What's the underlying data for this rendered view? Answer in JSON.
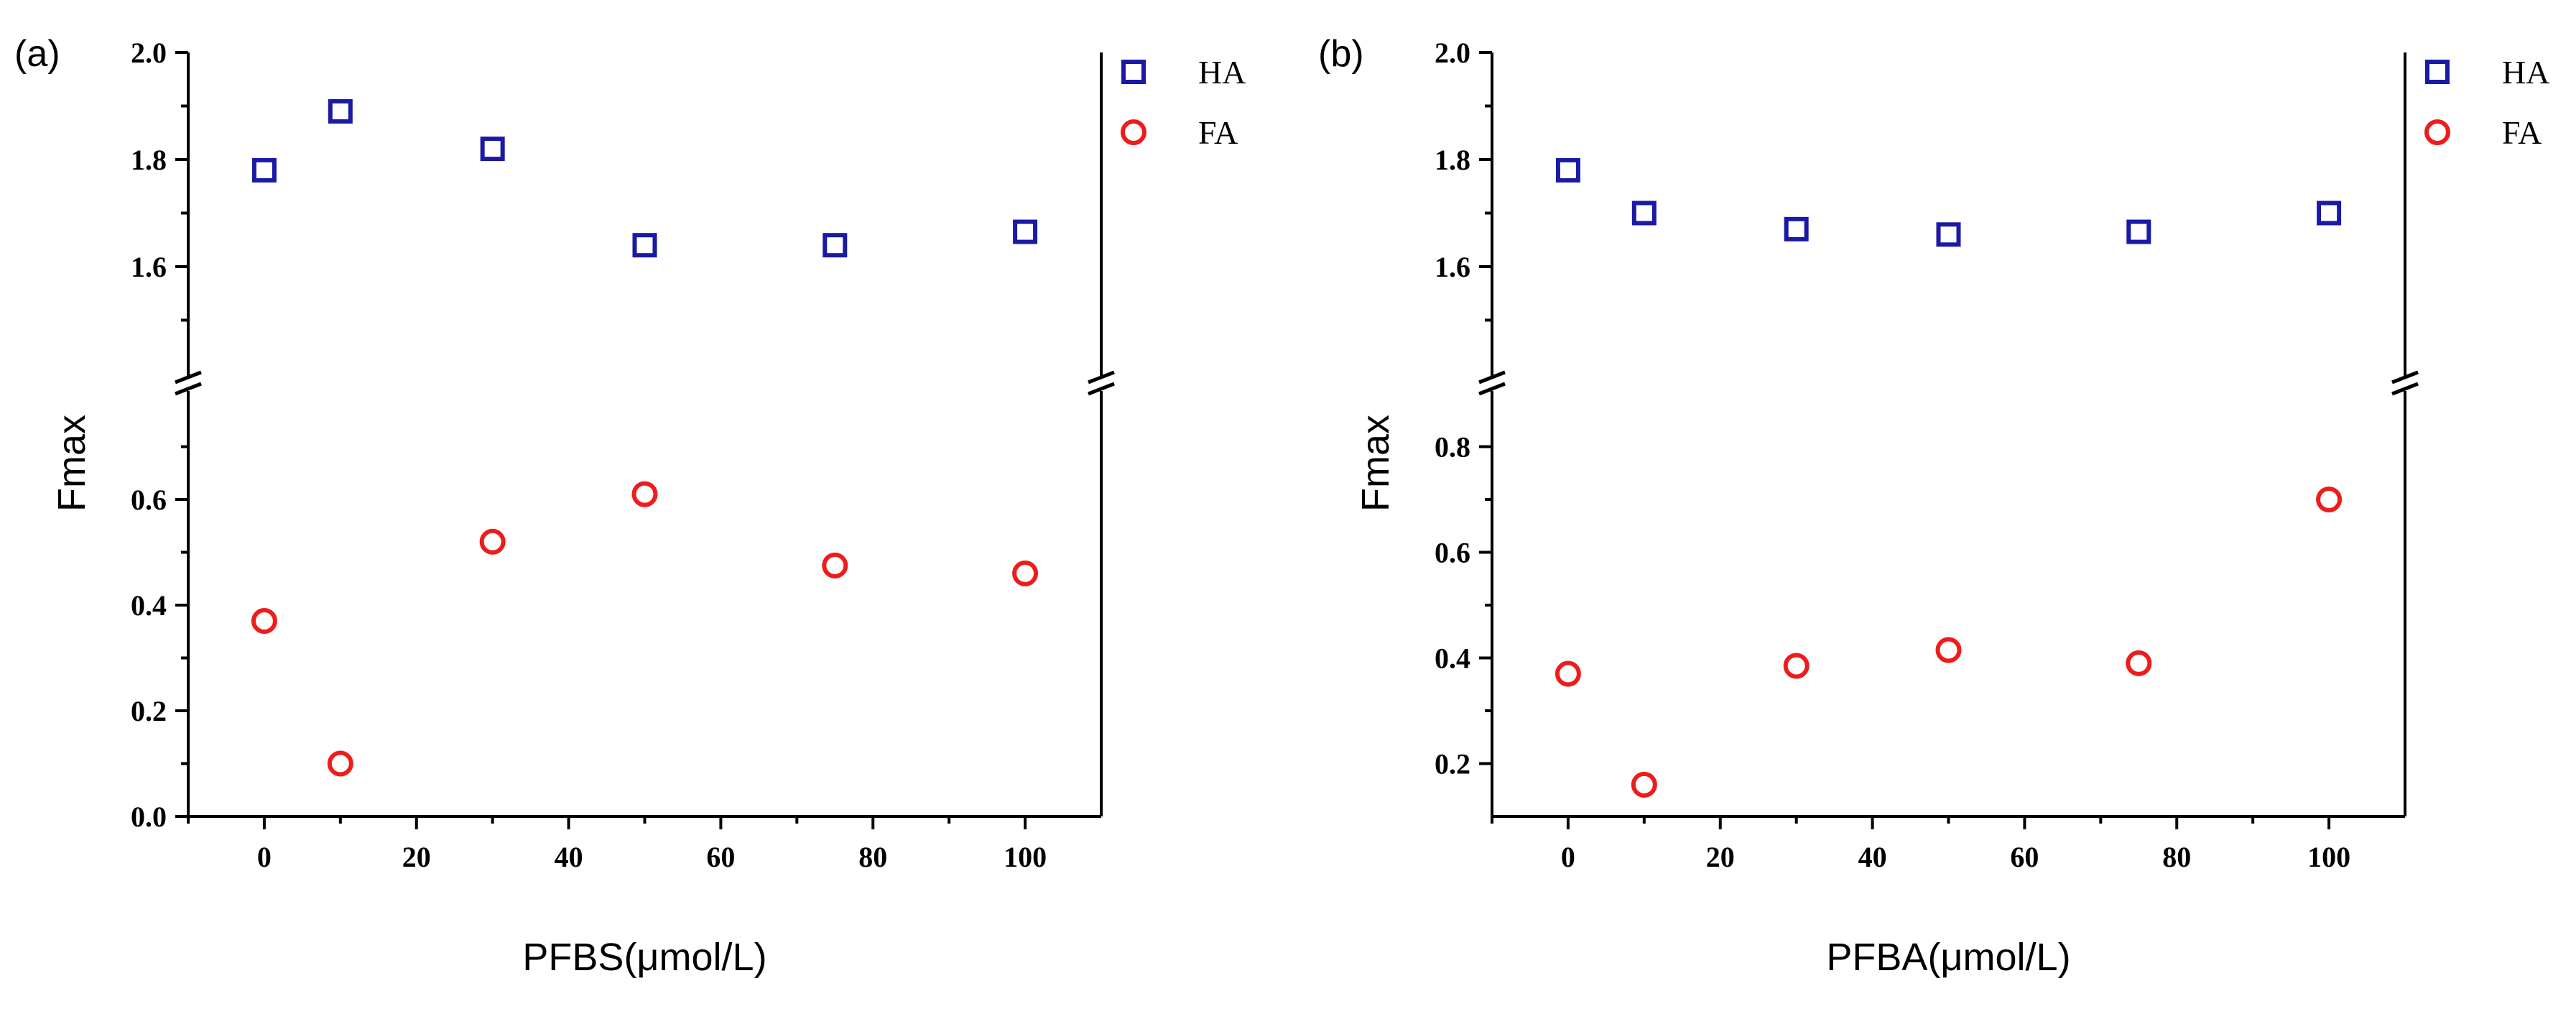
{
  "chart_data": [
    {
      "panel_label": "(a)",
      "type": "scatter",
      "xlabel": "PFBS(μmol/L)",
      "ylabel": "Fmax",
      "xlim": [
        -10,
        110
      ],
      "xticks": [
        0,
        20,
        40,
        60,
        80,
        100
      ],
      "y_broken_axis": true,
      "upper_ylim": [
        1.4,
        2.0
      ],
      "upper_yticks": [
        1.6,
        1.8,
        2.0
      ],
      "lower_ylim": [
        0.0,
        0.8
      ],
      "lower_yticks": [
        0.0,
        0.2,
        0.4,
        0.6
      ],
      "series": [
        {
          "name": "HA",
          "marker": "square",
          "color": "#1a1aa6",
          "x": [
            0,
            10,
            30,
            50,
            75,
            100
          ],
          "y": [
            1.78,
            1.89,
            1.82,
            1.64,
            1.64,
            1.665
          ]
        },
        {
          "name": "FA",
          "marker": "circle",
          "color": "#ee1c1c",
          "x": [
            0,
            10,
            30,
            50,
            75,
            100
          ],
          "y": [
            0.37,
            0.1,
            0.52,
            0.61,
            0.475,
            0.46
          ]
        }
      ],
      "legend_position": "outside-top-right"
    },
    {
      "panel_label": "(b)",
      "type": "scatter",
      "xlabel": "PFBA(μmol/L)",
      "ylabel": "Fmax",
      "xlim": [
        -10,
        110
      ],
      "xticks": [
        0,
        20,
        40,
        60,
        80,
        100
      ],
      "y_broken_axis": true,
      "upper_ylim": [
        1.4,
        2.0
      ],
      "upper_yticks": [
        1.6,
        1.8,
        2.0
      ],
      "lower_ylim": [
        0.1,
        0.9
      ],
      "lower_yticks": [
        0.2,
        0.4,
        0.6,
        0.8
      ],
      "series": [
        {
          "name": "HA",
          "marker": "square",
          "color": "#1a1aa6",
          "x": [
            0,
            10,
            30,
            50,
            75,
            100
          ],
          "y": [
            1.78,
            1.7,
            1.67,
            1.66,
            1.665,
            1.7
          ]
        },
        {
          "name": "FA",
          "marker": "circle",
          "color": "#ee1c1c",
          "x": [
            0,
            10,
            30,
            50,
            75,
            100
          ],
          "y": [
            0.37,
            0.16,
            0.385,
            0.415,
            0.39,
            0.7
          ]
        }
      ],
      "legend_position": "outside-top-right"
    }
  ]
}
